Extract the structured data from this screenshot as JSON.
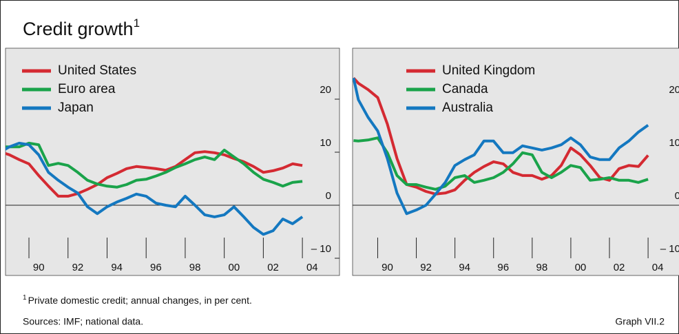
{
  "title": "Credit growth",
  "title_note": "1",
  "footnote": {
    "marker": "1",
    "text": "Private domestic credit; annual changes, in per cent."
  },
  "sources": "Sources: IMF; national data.",
  "graph_id": "Graph VII.2",
  "chart_data": [
    {
      "type": "line",
      "legend": "upper left",
      "xlim": [
        1988.8,
        2005.9
      ],
      "ylim": [
        -10,
        30
      ],
      "yticks": [
        {
          "value": -10,
          "label": "– 10"
        },
        0,
        10,
        20
      ],
      "xticks": [
        {
          "value": 1990,
          "label": "90"
        },
        {
          "value": 1992,
          "label": "92"
        },
        {
          "value": 1994,
          "label": "94"
        },
        {
          "value": 1996,
          "label": "96"
        },
        {
          "value": 1998,
          "label": "98"
        },
        {
          "value": 2000,
          "label": "00"
        },
        {
          "value": 2002,
          "label": "02"
        },
        {
          "value": 2004,
          "label": "04"
        }
      ],
      "x": [
        1988.75,
        1989,
        1989.5,
        1990,
        1990.5,
        1991,
        1991.5,
        1992,
        1992.5,
        1993,
        1993.5,
        1994,
        1994.5,
        1995,
        1995.5,
        1996,
        1996.5,
        1997,
        1997.5,
        1998,
        1998.5,
        1999,
        1999.5,
        2000,
        2000.5,
        2001,
        2001.5,
        2002,
        2002.5,
        2003,
        2003.5,
        2004
      ],
      "series": [
        {
          "name": "United States",
          "color": "#d42a32",
          "values": [
            9.8,
            9.5,
            8.6,
            7.8,
            5.6,
            3.6,
            1.7,
            1.7,
            2.2,
            3,
            3.9,
            5.2,
            6,
            6.9,
            7.3,
            7.1,
            6.9,
            6.6,
            7.3,
            8.6,
            9.9,
            10.1,
            9.9,
            9.5,
            8.8,
            8.2,
            7.3,
            6.2,
            6.5,
            7,
            7.8,
            7.5
          ]
        },
        {
          "name": "Euro area",
          "color": "#1aa34a",
          "values": [
            11,
            11,
            11,
            11.7,
            11.4,
            7.5,
            7.9,
            7.5,
            6.2,
            4.7,
            4,
            3.6,
            3.4,
            3.9,
            4.7,
            4.9,
            5.5,
            6.2,
            7.1,
            7.8,
            8.6,
            9.1,
            8.6,
            10.4,
            9.1,
            7.8,
            6.2,
            4.9,
            4.3,
            3.6,
            4.3,
            4.5
          ]
        },
        {
          "name": "Japan",
          "color": "#1478c0",
          "values": [
            10.5,
            11,
            11.7,
            11.4,
            9.5,
            6.2,
            4.7,
            3.4,
            2.3,
            -0.3,
            -1.6,
            -0.3,
            0.6,
            1.3,
            2.1,
            1.7,
            0.4,
            0,
            -0.3,
            1.7,
            0,
            -1.8,
            -2.2,
            -1.8,
            -0.3,
            -2.2,
            -4.2,
            -5.5,
            -4.8,
            -2.6,
            -3.5,
            -2.2
          ]
        }
      ]
    },
    {
      "type": "line",
      "legend": "upper left",
      "xlim": [
        1988.7,
        2006.1
      ],
      "ylim": [
        -10,
        30
      ],
      "yticks": [
        {
          "value": -10,
          "label": "– 10"
        },
        0,
        10,
        20
      ],
      "xticks": [
        {
          "value": 1990,
          "label": "90"
        },
        {
          "value": 1992,
          "label": "92"
        },
        {
          "value": 1994,
          "label": "94"
        },
        {
          "value": 1996,
          "label": "96"
        },
        {
          "value": 1998,
          "label": "98"
        },
        {
          "value": 2000,
          "label": "00"
        },
        {
          "value": 2002,
          "label": "02"
        },
        {
          "value": 2004,
          "label": "04"
        }
      ],
      "x": [
        1988.75,
        1989,
        1989.5,
        1990,
        1990.5,
        1991,
        1991.5,
        1992,
        1992.5,
        1993,
        1993.5,
        1994,
        1994.5,
        1995,
        1995.5,
        1996,
        1996.5,
        1997,
        1997.5,
        1998,
        1998.5,
        1999,
        1999.5,
        2000,
        2000.5,
        2001,
        2001.5,
        2002,
        2002.5,
        2003,
        2003.5,
        2004
      ],
      "series": [
        {
          "name": "United Kingdom",
          "color": "#d42a32",
          "values": [
            24,
            23,
            21.8,
            20.3,
            15.3,
            8.8,
            3.9,
            3.4,
            2.6,
            2.1,
            2.3,
            2.9,
            4.7,
            6.2,
            7.3,
            8.2,
            7.8,
            6.2,
            5.6,
            5.6,
            4.9,
            5.6,
            7.5,
            10.8,
            9.5,
            7.5,
            5.2,
            4.7,
            6.9,
            7.5,
            7.3,
            9.4
          ]
        },
        {
          "name": "Canada",
          "color": "#1aa34a",
          "values": [
            12.2,
            12.1,
            12.3,
            12.7,
            9.9,
            5.6,
            3.9,
            3.9,
            3.4,
            3,
            3.6,
            5.2,
            5.6,
            4.3,
            4.7,
            5.2,
            6.2,
            7.8,
            9.9,
            9.5,
            6.2,
            5.2,
            6.2,
            7.5,
            7.1,
            4.7,
            4.9,
            5.2,
            4.7,
            4.7,
            4.3,
            4.9
          ]
        },
        {
          "name": "Australia",
          "color": "#1478c0",
          "values": [
            24,
            19.9,
            16.6,
            14,
            8.8,
            2.3,
            -1.6,
            -0.9,
            0,
            2.1,
            4.3,
            7.5,
            8.6,
            9.5,
            12.1,
            12.1,
            9.9,
            9.9,
            11.2,
            10.8,
            10.4,
            10.8,
            11.4,
            12.7,
            11.4,
            9.1,
            8.6,
            8.6,
            10.8,
            12.1,
            13.8,
            15.1
          ]
        }
      ]
    }
  ]
}
